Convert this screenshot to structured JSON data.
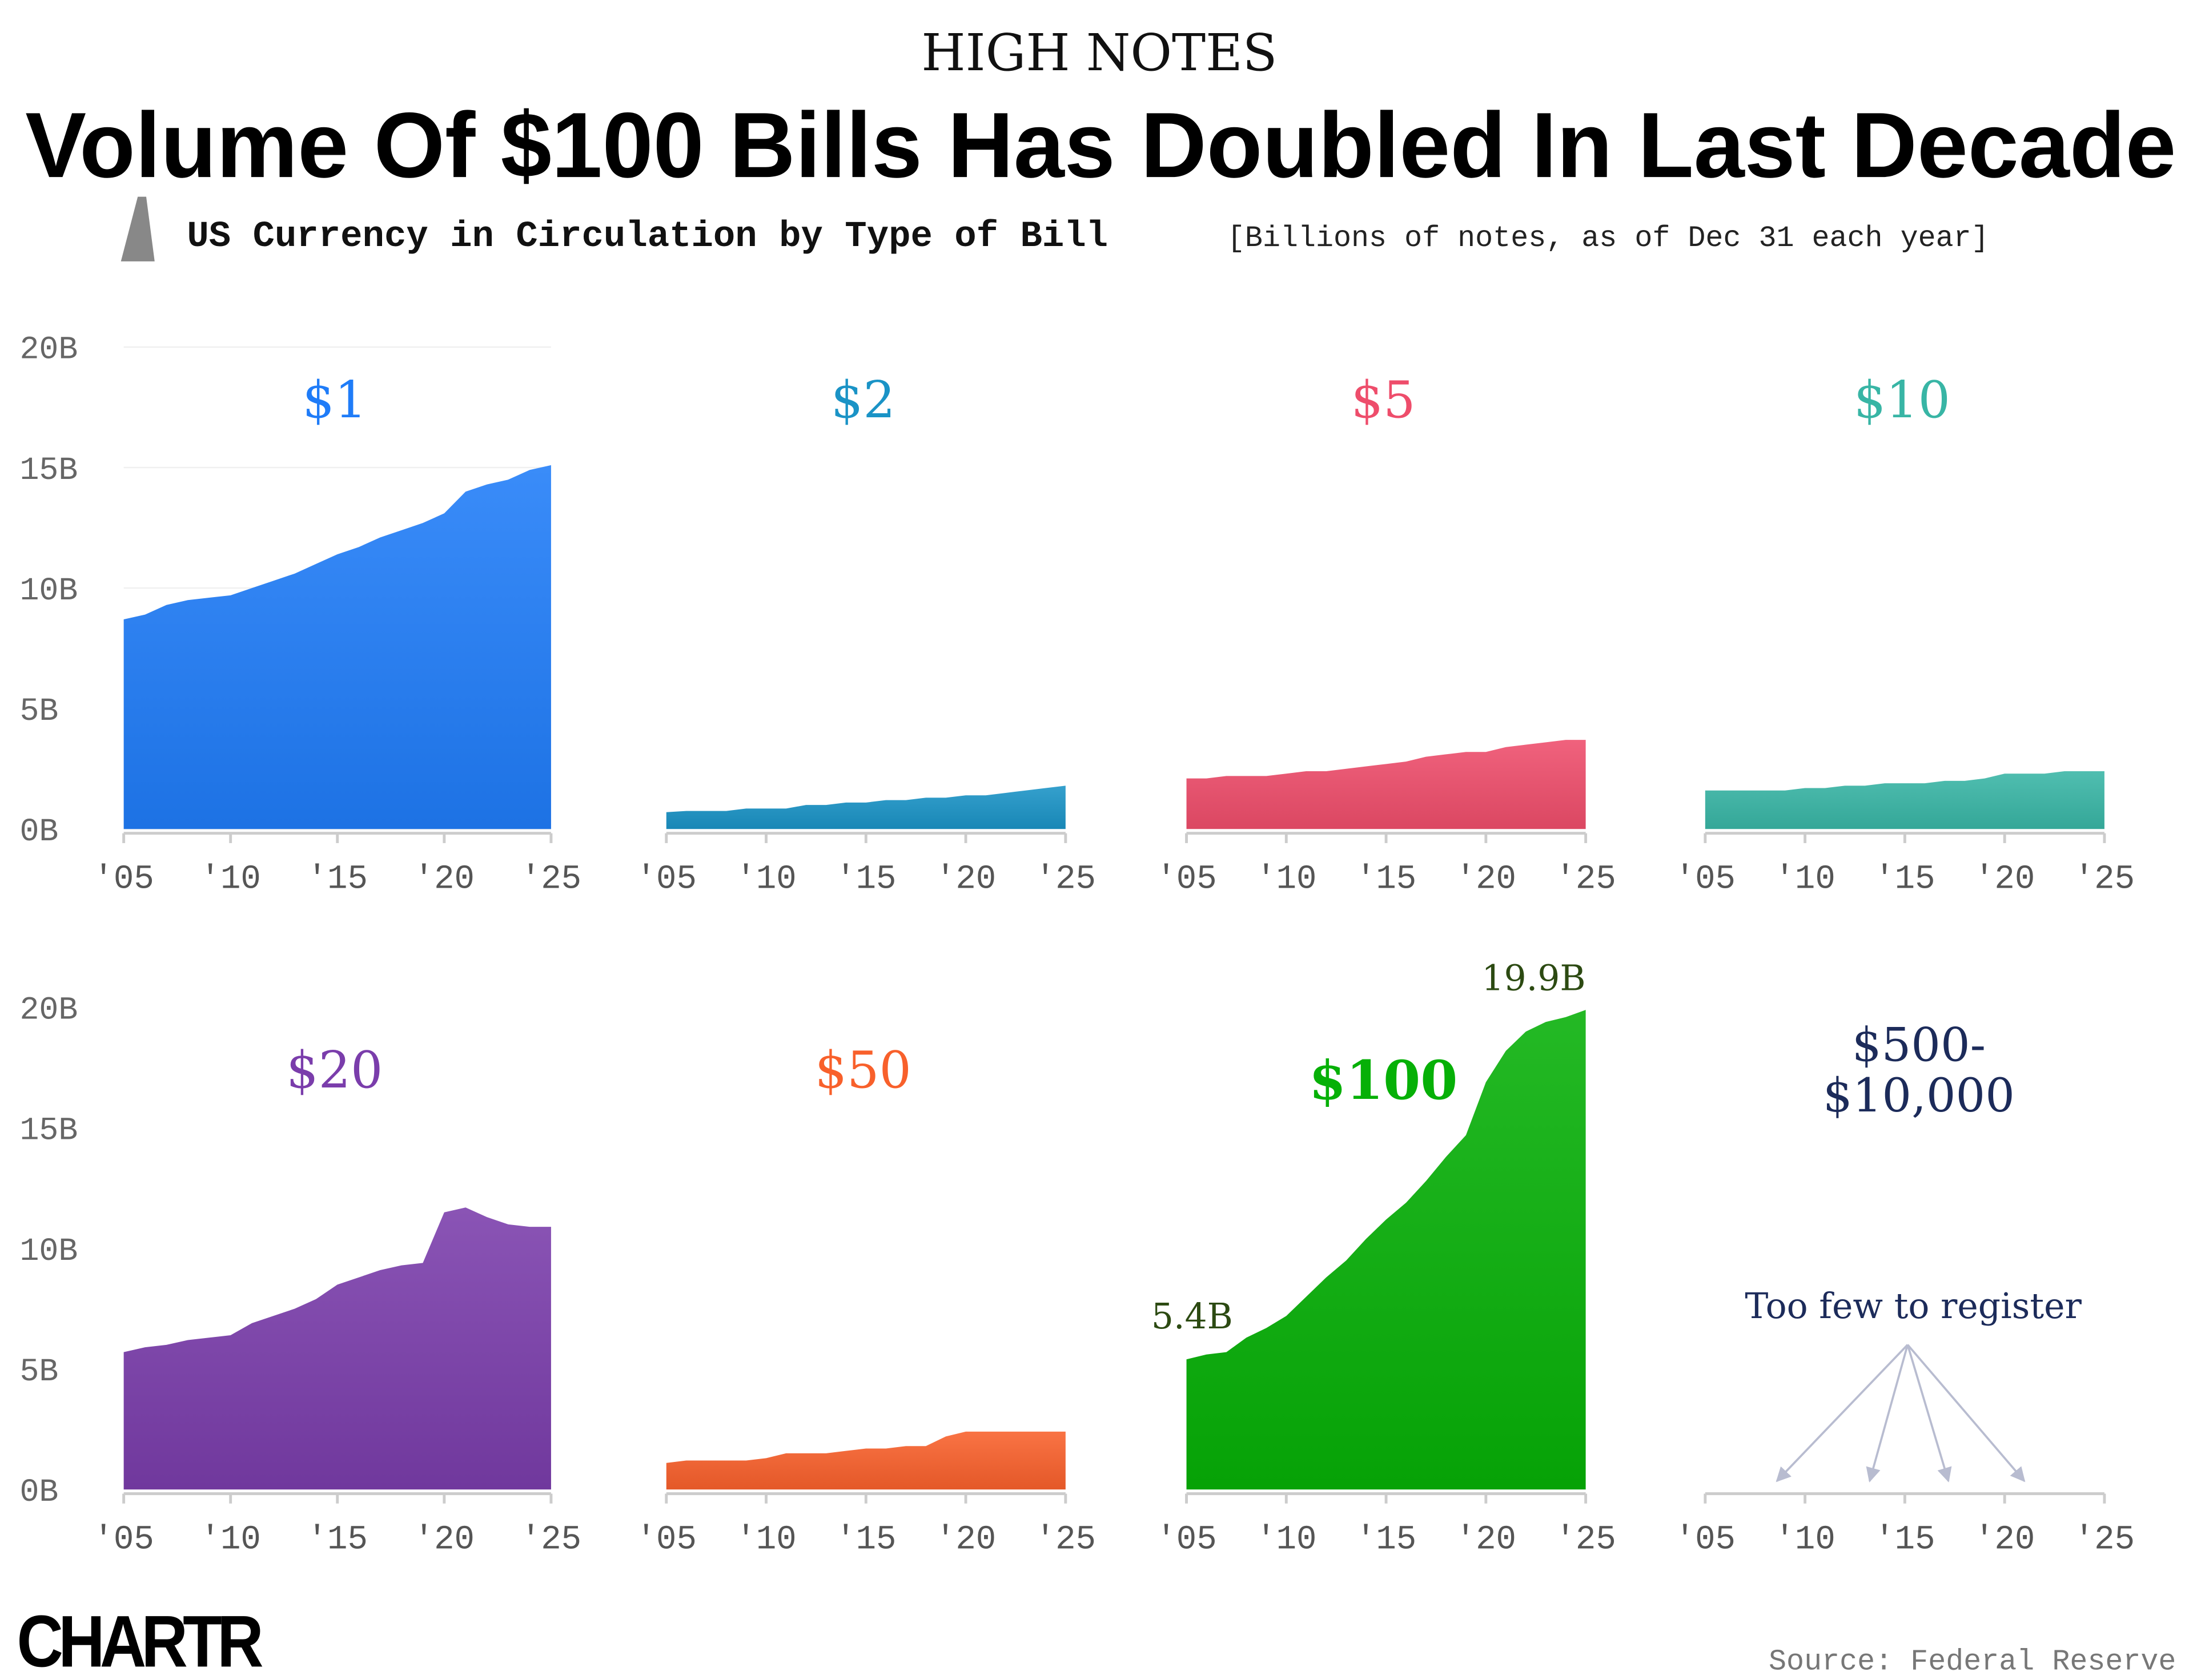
{
  "header": {
    "kicker": "HIGH NOTES",
    "title": "Volume Of $100 Bills Has Doubled In Last Decade",
    "subtitle": "US Currency in Circulation by Type of Bill",
    "subtitle_note": "[Billions of notes, as of Dec 31 each year]"
  },
  "footer": {
    "logo": "CHARTR",
    "source": "Source: Federal Reserve"
  },
  "chart_data": [
    {
      "type": "area",
      "title": "$1",
      "color": "#1f7cf8",
      "x": [
        2005,
        2006,
        2007,
        2008,
        2009,
        2010,
        2011,
        2012,
        2013,
        2014,
        2015,
        2016,
        2017,
        2018,
        2019,
        2020,
        2021,
        2022,
        2023,
        2024,
        2025
      ],
      "values": [
        8.7,
        8.9,
        9.3,
        9.5,
        9.6,
        9.7,
        10.0,
        10.3,
        10.6,
        11.0,
        11.4,
        11.7,
        12.1,
        12.4,
        12.7,
        13.1,
        14.0,
        14.3,
        14.5,
        14.9,
        15.1
      ],
      "xlim": [
        2005,
        2025
      ],
      "ylim": [
        0,
        20
      ],
      "grid": true,
      "yticks": [
        {
          "value": 0,
          "label": "0B"
        },
        {
          "value": 5,
          "label": "5B"
        },
        {
          "value": 10,
          "label": "10B"
        },
        {
          "value": 15,
          "label": "15B"
        },
        {
          "value": 20,
          "label": "20B"
        }
      ],
      "xticks": [
        {
          "value": 2005,
          "label": "'05"
        },
        {
          "value": 2010,
          "label": "'10"
        },
        {
          "value": 2015,
          "label": "'15"
        },
        {
          "value": 2020,
          "label": "'20"
        },
        {
          "value": 2025,
          "label": "'25"
        }
      ]
    },
    {
      "type": "area",
      "title": "$2",
      "color": "#1a93c6",
      "x": [
        2005,
        2006,
        2007,
        2008,
        2009,
        2010,
        2011,
        2012,
        2013,
        2014,
        2015,
        2016,
        2017,
        2018,
        2019,
        2020,
        2021,
        2022,
        2023,
        2024,
        2025
      ],
      "values": [
        0.7,
        0.75,
        0.75,
        0.75,
        0.85,
        0.85,
        0.85,
        1.0,
        1.0,
        1.1,
        1.1,
        1.2,
        1.2,
        1.3,
        1.3,
        1.4,
        1.4,
        1.5,
        1.6,
        1.7,
        1.8
      ],
      "xlim": [
        2005,
        2025
      ],
      "ylim": [
        0,
        20
      ],
      "xticks": [
        {
          "value": 2005,
          "label": "'05"
        },
        {
          "value": 2010,
          "label": "'10"
        },
        {
          "value": 2015,
          "label": "'15"
        },
        {
          "value": 2020,
          "label": "'20"
        },
        {
          "value": 2025,
          "label": "'25"
        }
      ]
    },
    {
      "type": "area",
      "title": "$5",
      "color": "#ee4d6b",
      "x": [
        2005,
        2006,
        2007,
        2008,
        2009,
        2010,
        2011,
        2012,
        2013,
        2014,
        2015,
        2016,
        2017,
        2018,
        2019,
        2020,
        2021,
        2022,
        2023,
        2024,
        2025
      ],
      "values": [
        2.1,
        2.1,
        2.2,
        2.2,
        2.2,
        2.3,
        2.4,
        2.4,
        2.5,
        2.6,
        2.7,
        2.8,
        3.0,
        3.1,
        3.2,
        3.2,
        3.4,
        3.5,
        3.6,
        3.7,
        3.7
      ],
      "xlim": [
        2005,
        2025
      ],
      "ylim": [
        0,
        20
      ],
      "xticks": [
        {
          "value": 2005,
          "label": "'05"
        },
        {
          "value": 2010,
          "label": "'10"
        },
        {
          "value": 2015,
          "label": "'15"
        },
        {
          "value": 2020,
          "label": "'20"
        },
        {
          "value": 2025,
          "label": "'25"
        }
      ]
    },
    {
      "type": "area",
      "title": "$10",
      "color": "#38b5a5",
      "x": [
        2005,
        2006,
        2007,
        2008,
        2009,
        2010,
        2011,
        2012,
        2013,
        2014,
        2015,
        2016,
        2017,
        2018,
        2019,
        2020,
        2021,
        2022,
        2023,
        2024,
        2025
      ],
      "values": [
        1.6,
        1.6,
        1.6,
        1.6,
        1.6,
        1.7,
        1.7,
        1.8,
        1.8,
        1.9,
        1.9,
        1.9,
        2.0,
        2.0,
        2.1,
        2.3,
        2.3,
        2.3,
        2.4,
        2.4,
        2.4
      ],
      "xlim": [
        2005,
        2025
      ],
      "ylim": [
        0,
        20
      ],
      "xticks": [
        {
          "value": 2005,
          "label": "'05"
        },
        {
          "value": 2010,
          "label": "'10"
        },
        {
          "value": 2015,
          "label": "'15"
        },
        {
          "value": 2020,
          "label": "'20"
        },
        {
          "value": 2025,
          "label": "'25"
        }
      ]
    },
    {
      "type": "area",
      "title": "$20",
      "color": "#7a3dab",
      "x": [
        2005,
        2006,
        2007,
        2008,
        2009,
        2010,
        2011,
        2012,
        2013,
        2014,
        2015,
        2016,
        2017,
        2018,
        2019,
        2020,
        2021,
        2022,
        2023,
        2024,
        2025
      ],
      "values": [
        5.7,
        5.9,
        6.0,
        6.2,
        6.3,
        6.4,
        6.9,
        7.2,
        7.5,
        7.9,
        8.5,
        8.8,
        9.1,
        9.3,
        9.4,
        11.5,
        11.7,
        11.3,
        11.0,
        10.9,
        10.9
      ],
      "xlim": [
        2005,
        2025
      ],
      "ylim": [
        0,
        20
      ],
      "yticks": [
        {
          "value": 0,
          "label": "0B"
        },
        {
          "value": 5,
          "label": "5B"
        },
        {
          "value": 10,
          "label": "10B"
        },
        {
          "value": 15,
          "label": "15B"
        },
        {
          "value": 20,
          "label": "20B"
        }
      ],
      "xticks": [
        {
          "value": 2005,
          "label": "'05"
        },
        {
          "value": 2010,
          "label": "'10"
        },
        {
          "value": 2015,
          "label": "'15"
        },
        {
          "value": 2020,
          "label": "'20"
        },
        {
          "value": 2025,
          "label": "'25"
        }
      ]
    },
    {
      "type": "area",
      "title": "$50",
      "color": "#f8602b",
      "x": [
        2005,
        2006,
        2007,
        2008,
        2009,
        2010,
        2011,
        2012,
        2013,
        2014,
        2015,
        2016,
        2017,
        2018,
        2019,
        2020,
        2021,
        2022,
        2023,
        2024,
        2025
      ],
      "values": [
        1.1,
        1.2,
        1.2,
        1.2,
        1.2,
        1.3,
        1.5,
        1.5,
        1.5,
        1.6,
        1.7,
        1.7,
        1.8,
        1.8,
        2.2,
        2.4,
        2.4,
        2.4,
        2.4,
        2.4,
        2.4
      ],
      "xlim": [
        2005,
        2025
      ],
      "ylim": [
        0,
        20
      ],
      "xticks": [
        {
          "value": 2005,
          "label": "'05"
        },
        {
          "value": 2010,
          "label": "'10"
        },
        {
          "value": 2015,
          "label": "'15"
        },
        {
          "value": 2020,
          "label": "'20"
        },
        {
          "value": 2025,
          "label": "'25"
        }
      ]
    },
    {
      "type": "area",
      "title": "$100",
      "color": "#06b007",
      "x": [
        2005,
        2006,
        2007,
        2008,
        2009,
        2010,
        2011,
        2012,
        2013,
        2014,
        2015,
        2016,
        2017,
        2018,
        2019,
        2020,
        2021,
        2022,
        2023,
        2024,
        2025
      ],
      "values": [
        5.4,
        5.6,
        5.7,
        6.3,
        6.7,
        7.2,
        8.0,
        8.8,
        9.5,
        10.4,
        11.2,
        11.9,
        12.8,
        13.8,
        14.7,
        16.9,
        18.2,
        19.0,
        19.4,
        19.6,
        19.9
      ],
      "value_labels": [
        "5.4B",
        null,
        null,
        null,
        null,
        null,
        null,
        null,
        null,
        null,
        null,
        null,
        null,
        null,
        null,
        null,
        null,
        null,
        null,
        null,
        "19.9B"
      ],
      "xlim": [
        2005,
        2025
      ],
      "ylim": [
        0,
        20
      ],
      "xticks": [
        {
          "value": 2005,
          "label": "'05"
        },
        {
          "value": 2010,
          "label": "'10"
        },
        {
          "value": 2015,
          "label": "'15"
        },
        {
          "value": 2020,
          "label": "'20"
        },
        {
          "value": 2025,
          "label": "'25"
        }
      ]
    },
    {
      "type": "note",
      "title_lines": [
        "$500-",
        "$10,000"
      ],
      "color": "#1c2b5a",
      "annotation": "Too few to register",
      "xlim": [
        2005,
        2025
      ],
      "ylim": [
        0,
        20
      ],
      "xticks": [
        {
          "value": 2005,
          "label": "'05"
        },
        {
          "value": 2010,
          "label": "'10"
        },
        {
          "value": 2015,
          "label": "'15"
        },
        {
          "value": 2020,
          "label": "'20"
        },
        {
          "value": 2025,
          "label": "'25"
        }
      ]
    }
  ]
}
